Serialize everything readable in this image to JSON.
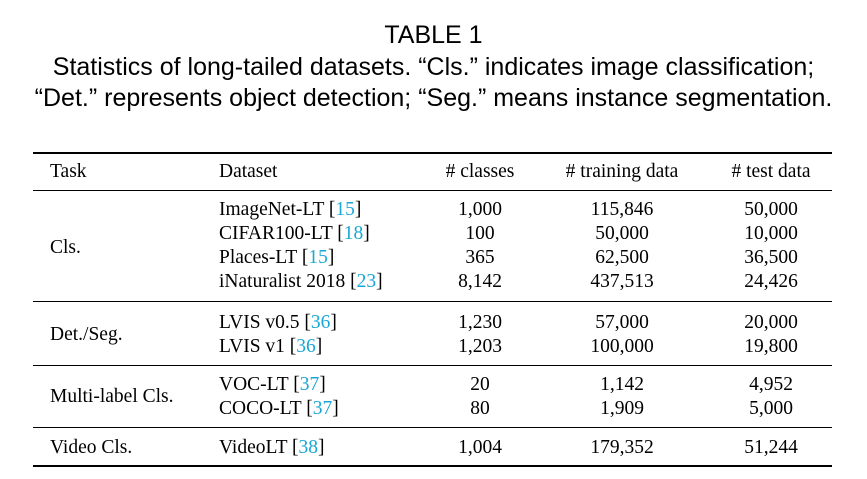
{
  "caption": {
    "label": "TABLE 1",
    "line1": "Statistics of long-tailed datasets. “Cls.” indicates image classification;",
    "line2": "“Det.” represents object detection; “Seg.” means instance segmentation."
  },
  "table": {
    "headers": {
      "task": "Task",
      "dataset": "Dataset",
      "classes": "# classes",
      "training": "# training data",
      "test": "# test data"
    },
    "groups": [
      {
        "task": "Cls.",
        "rows": [
          {
            "dataset": "ImageNet-LT [",
            "ref": "15",
            "close": "]",
            "classes": "1,000",
            "training": "115,846",
            "test": "50,000"
          },
          {
            "dataset": "CIFAR100-LT [",
            "ref": "18",
            "close": "]",
            "classes": "100",
            "training": "50,000",
            "test": "10,000"
          },
          {
            "dataset": "Places-LT [",
            "ref": "15",
            "close": "]",
            "classes": "365",
            "training": "62,500",
            "test": "36,500"
          },
          {
            "dataset": "iNaturalist 2018 [",
            "ref": "23",
            "close": "]",
            "classes": "8,142",
            "training": "437,513",
            "test": "24,426"
          }
        ]
      },
      {
        "task": "Det./Seg.",
        "rows": [
          {
            "dataset": "LVIS v0.5 [",
            "ref": "36",
            "close": "]",
            "classes": "1,230",
            "training": "57,000",
            "test": "20,000"
          },
          {
            "dataset": "LVIS v1 [",
            "ref": "36",
            "close": "]",
            "classes": "1,203",
            "training": "100,000",
            "test": "19,800"
          }
        ]
      },
      {
        "task": "Multi-label Cls.",
        "rows": [
          {
            "dataset": "VOC-LT [",
            "ref": "37",
            "close": "]",
            "classes": "20",
            "training": "1,142",
            "test": "4,952"
          },
          {
            "dataset": "COCO-LT [",
            "ref": "37",
            "close": "]",
            "classes": "80",
            "training": "1,909",
            "test": "5,000"
          }
        ]
      },
      {
        "task": "Video Cls.",
        "rows": [
          {
            "dataset": "VideoLT [",
            "ref": "38",
            "close": "]",
            "classes": "1,004",
            "training": "179,352",
            "test": "51,244"
          }
        ]
      }
    ]
  },
  "colors": {
    "citation": "#1aa7d6",
    "text": "#000000"
  }
}
